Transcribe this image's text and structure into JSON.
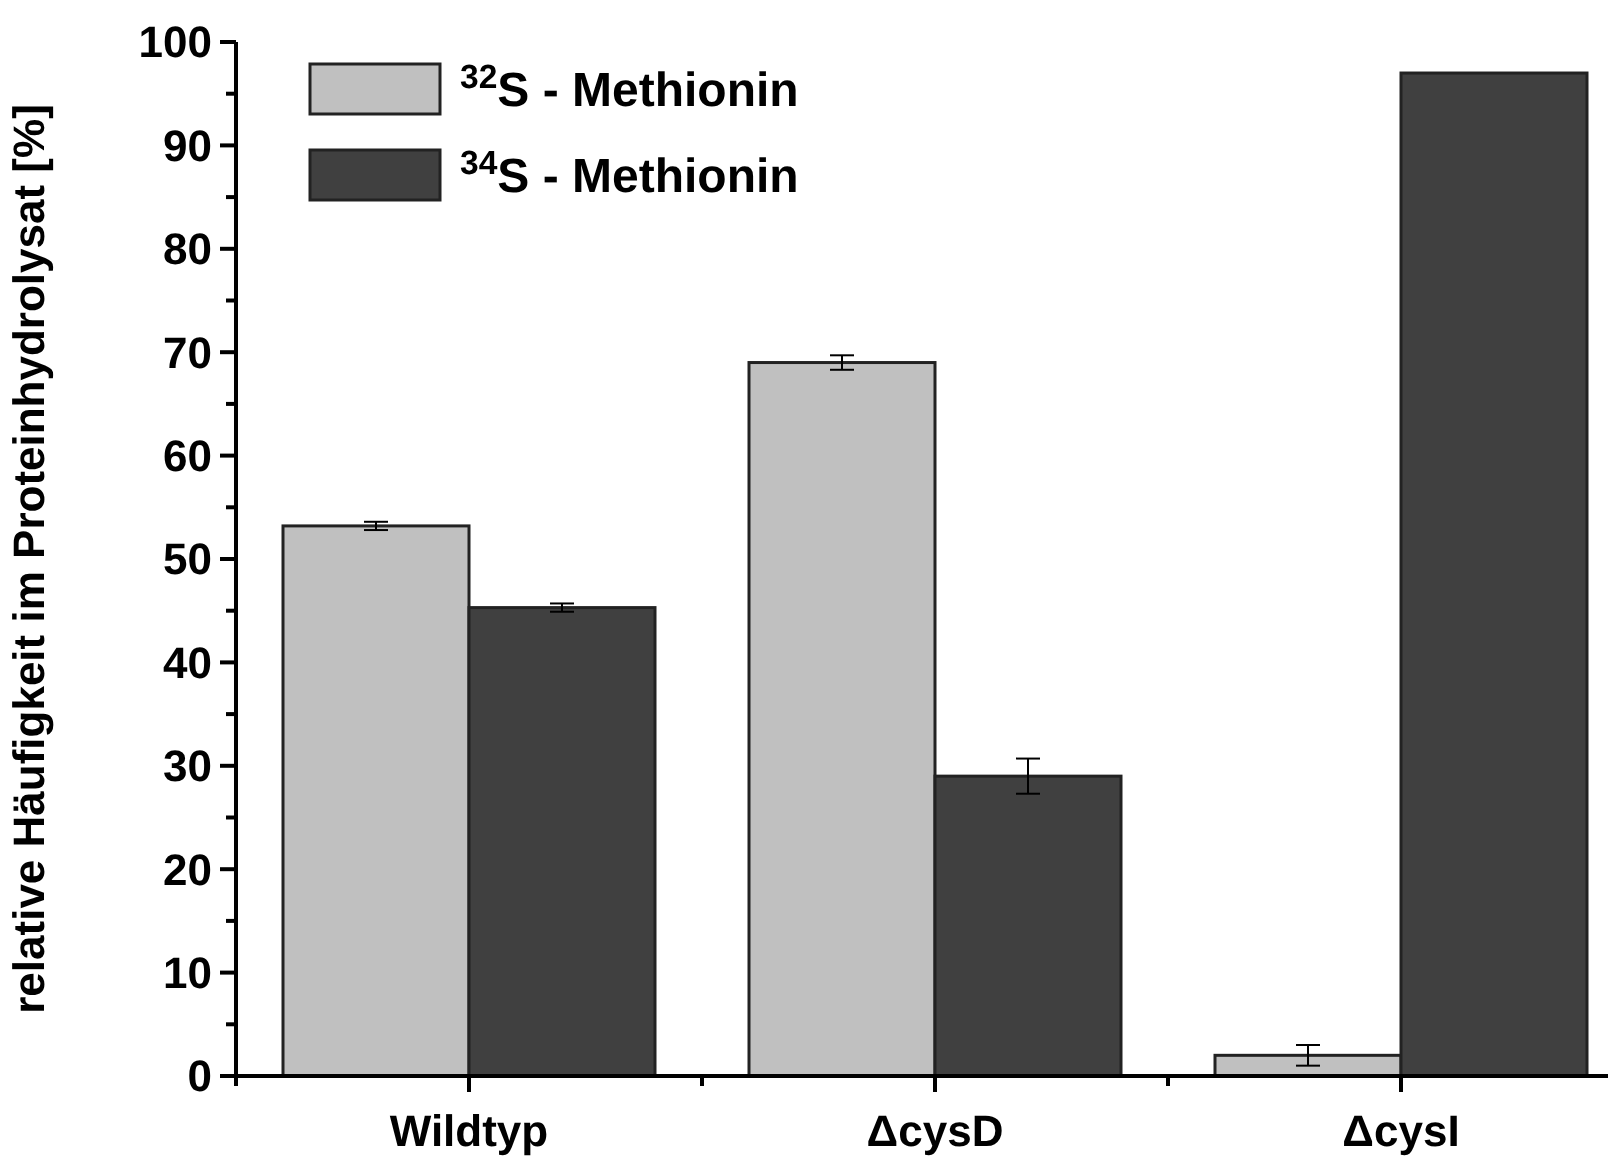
{
  "chart_data": {
    "type": "bar",
    "ylabel": "relative Häufigkeit im Proteinhydrolysat [%]",
    "categories": [
      "Wildtyp",
      "ΔcysD",
      "ΔcysI"
    ],
    "series": [
      {
        "name": "$^{32}$S - Methionin",
        "color": "#c0c0c0",
        "values": [
          53.2,
          69,
          2
        ],
        "errors": [
          0.4,
          0.7,
          1
        ]
      },
      {
        "name": "$^{34}$S - Methionin",
        "color": "#404040",
        "values": [
          45.3,
          29,
          97
        ],
        "errors": [
          0.4,
          1.7,
          null
        ]
      }
    ],
    "ylim": [
      0,
      100
    ],
    "yticks": [
      0,
      10,
      20,
      30,
      40,
      50,
      60,
      70,
      80,
      90,
      100
    ],
    "grid": false,
    "legend": "top left"
  }
}
